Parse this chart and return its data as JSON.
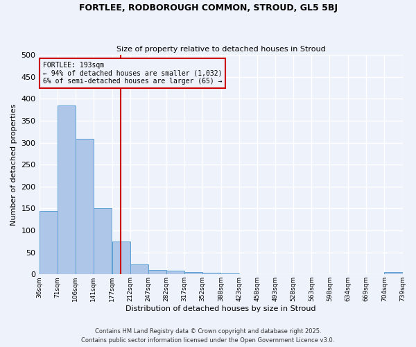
{
  "title": "FORTLEE, RODBOROUGH COMMON, STROUD, GL5 5BJ",
  "subtitle": "Size of property relative to detached houses in Stroud",
  "xlabel": "Distribution of detached houses by size in Stroud",
  "ylabel": "Number of detached properties",
  "bar_color": "#aec6e8",
  "bar_edge_color": "#5a9fd4",
  "bin_edges": [
    36,
    71,
    106,
    141,
    177,
    212,
    247,
    282,
    317,
    352,
    388,
    423,
    458,
    493,
    528,
    563,
    598,
    634,
    669,
    704,
    739
  ],
  "bin_labels": [
    "36sqm",
    "71sqm",
    "106sqm",
    "141sqm",
    "177sqm",
    "212sqm",
    "247sqm",
    "282sqm",
    "317sqm",
    "352sqm",
    "388sqm",
    "423sqm",
    "458sqm",
    "493sqm",
    "528sqm",
    "563sqm",
    "598sqm",
    "634sqm",
    "669sqm",
    "704sqm",
    "739sqm"
  ],
  "counts": [
    145,
    385,
    308,
    150,
    75,
    22,
    10,
    8,
    5,
    3,
    2,
    1,
    0,
    0,
    0,
    0,
    0,
    0,
    0,
    5
  ],
  "fortlee_size": 193,
  "vline_color": "#cc0000",
  "annotation_line1": "FORTLEE: 193sqm",
  "annotation_line2": "← 94% of detached houses are smaller (1,032)",
  "annotation_line3": "6% of semi-detached houses are larger (65) →",
  "annotation_box_color": "#cc0000",
  "ylim": [
    0,
    500
  ],
  "yticks": [
    0,
    50,
    100,
    150,
    200,
    250,
    300,
    350,
    400,
    450,
    500
  ],
  "footer_line1": "Contains HM Land Registry data © Crown copyright and database right 2025.",
  "footer_line2": "Contains public sector information licensed under the Open Government Licence v3.0.",
  "background_color": "#eef2fa",
  "grid_color": "#ffffff"
}
